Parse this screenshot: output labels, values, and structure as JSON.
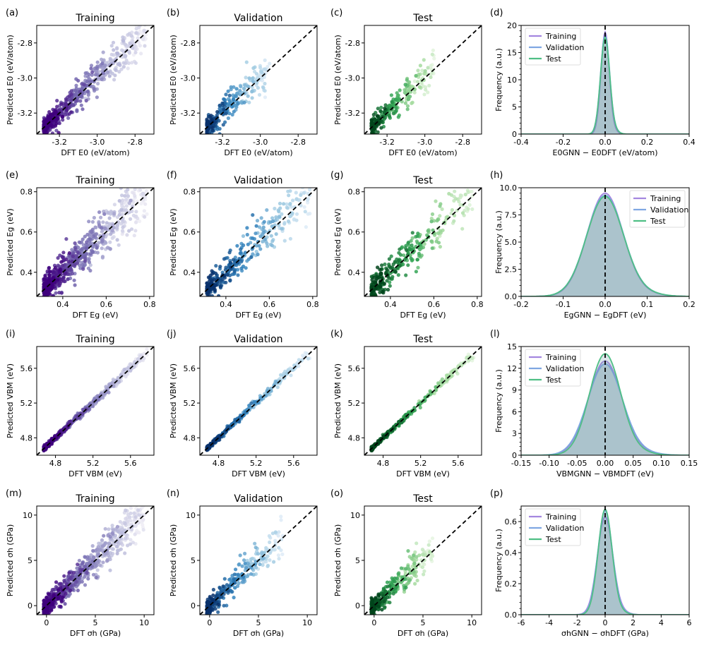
{
  "figure": {
    "row_labels": {
      "E0": {
        "x": "DFT E0 (eV/atom)",
        "y": "Predicted E0 (eV/atom)",
        "x_sym": "E",
        "x_sub": "0",
        "x_unit": "(eV/atom)"
      },
      "Eg": {
        "x": "DFT Eg (eV)",
        "y": "Predicted Eg (eV)"
      },
      "VBM": {
        "x": "DFT VBM (eV)",
        "y": "Predicted VBM (eV)"
      },
      "sigma": {
        "x": "DFT σh (GPa)",
        "y": "Predicted σh (GPa)"
      }
    }
  },
  "chart_data": [
    {
      "panel": "(a)",
      "type": "scatter",
      "title": "Training",
      "colormap": "purple",
      "xlabel": "DFT E0 (eV/atom)",
      "ylabel": "Predicted E0 (eV/atom)",
      "xlim": [
        -3.32,
        -2.7
      ],
      "ylim": [
        -3.32,
        -2.7
      ],
      "xticks": [
        "-3.2",
        "-3.0",
        "-2.8"
      ],
      "xtick_values": [
        -3.2,
        -3.0,
        -2.8
      ],
      "yticks": [
        "-3.2",
        "-3.0",
        "-2.8"
      ],
      "ytick_values": [
        -3.2,
        -3.0,
        -2.8
      ],
      "diagonal": true,
      "n_points": 600,
      "spread": 0.04
    },
    {
      "panel": "(b)",
      "type": "scatter",
      "title": "Validation",
      "colormap": "blue",
      "xlabel": "DFT E0 (eV/atom)",
      "ylabel": "Predicted E0 (eV/atom)",
      "xlim": [
        -3.32,
        -2.7
      ],
      "ylim": [
        -3.32,
        -2.7
      ],
      "xticks": [
        "-3.2",
        "-3.0",
        "-2.8"
      ],
      "xtick_values": [
        -3.2,
        -3.0,
        -2.8
      ],
      "yticks": [
        "-3.2",
        "-3.0",
        "-2.8"
      ],
      "ytick_values": [
        -3.2,
        -3.0,
        -2.8
      ],
      "diagonal": true,
      "n_points": 260,
      "spread": 0.045,
      "data_max": -2.95
    },
    {
      "panel": "(c)",
      "type": "scatter",
      "title": "Test",
      "colormap": "green",
      "xlabel": "DFT E0 (eV/atom)",
      "ylabel": "Predicted E0 (eV/atom)",
      "xlim": [
        -3.32,
        -2.7
      ],
      "ylim": [
        -3.32,
        -2.7
      ],
      "xticks": [
        "-3.2",
        "-3.0",
        "-2.8"
      ],
      "xtick_values": [
        -3.2,
        -3.0,
        -2.8
      ],
      "yticks": [
        "-3.2",
        "-3.0",
        "-2.8"
      ],
      "ytick_values": [
        -3.2,
        -3.0,
        -2.8
      ],
      "diagonal": true,
      "n_points": 240,
      "spread": 0.04,
      "data_max": -2.95
    },
    {
      "panel": "(d)",
      "type": "line",
      "title": "",
      "xlabel": "E0GNN − E0DFT (eV/atom)",
      "ylabel": "Frequency (a.u.)",
      "xlim": [
        -0.4,
        0.4
      ],
      "ylim": [
        0,
        20
      ],
      "xticks": [
        "-0.4",
        "-0.2",
        "0.0",
        "0.2",
        "0.4"
      ],
      "xtick_values": [
        -0.4,
        -0.2,
        0.0,
        0.2,
        0.4
      ],
      "yticks": [
        "0",
        "5",
        "10",
        "15",
        "20"
      ],
      "ytick_values": [
        0,
        5,
        10,
        15,
        20
      ],
      "legend": [
        "Training",
        "Validation",
        "Test"
      ],
      "legend_loc": "top-left",
      "series": [
        {
          "name": "Training",
          "peak": 18.8,
          "width": 0.02
        },
        {
          "name": "Validation",
          "peak": 18.2,
          "width": 0.022
        },
        {
          "name": "Test",
          "peak": 17.8,
          "width": 0.022
        }
      ]
    },
    {
      "panel": "(e)",
      "type": "scatter",
      "title": "Training",
      "colormap": "purple",
      "xlabel": "DFT Eg (eV)",
      "ylabel": "Predicted Eg (eV)",
      "xlim": [
        0.28,
        0.82
      ],
      "ylim": [
        0.28,
        0.82
      ],
      "xticks": [
        "0.4",
        "0.6",
        "0.8"
      ],
      "xtick_values": [
        0.4,
        0.6,
        0.8
      ],
      "yticks": [
        "0.4",
        "0.6",
        "0.8"
      ],
      "ytick_values": [
        0.4,
        0.6,
        0.8
      ],
      "diagonal": true,
      "n_points": 700,
      "spread": 0.05
    },
    {
      "panel": "(f)",
      "type": "scatter",
      "title": "Validation",
      "colormap": "blue",
      "xlabel": "DFT Eg (eV)",
      "ylabel": "Predicted Eg (eV)",
      "xlim": [
        0.28,
        0.82
      ],
      "ylim": [
        0.28,
        0.82
      ],
      "xticks": [
        "0.4",
        "0.6",
        "0.8"
      ],
      "xtick_values": [
        0.4,
        0.6,
        0.8
      ],
      "yticks": [
        "0.4",
        "0.6",
        "0.8"
      ],
      "ytick_values": [
        0.4,
        0.6,
        0.8
      ],
      "diagonal": true,
      "n_points": 320,
      "spread": 0.045
    },
    {
      "panel": "(g)",
      "type": "scatter",
      "title": "Test",
      "colormap": "green",
      "xlabel": "DFT Eg (eV)",
      "ylabel": "Predicted Eg (eV)",
      "xlim": [
        0.28,
        0.82
      ],
      "ylim": [
        0.28,
        0.82
      ],
      "xticks": [
        "0.4",
        "0.6",
        "0.8"
      ],
      "xtick_values": [
        0.4,
        0.6,
        0.8
      ],
      "yticks": [
        "0.4",
        "0.6",
        "0.8"
      ],
      "ytick_values": [
        0.4,
        0.6,
        0.8
      ],
      "diagonal": true,
      "n_points": 320,
      "spread": 0.05
    },
    {
      "panel": "(h)",
      "type": "line",
      "title": "",
      "xlabel": "EgGNN − EgDFT (eV)",
      "ylabel": "Frequency (a.u.)",
      "xlim": [
        -0.2,
        0.2
      ],
      "ylim": [
        0,
        10
      ],
      "xticks": [
        "-0.2",
        "-0.1",
        "0.0",
        "0.1",
        "0.2"
      ],
      "xtick_values": [
        -0.2,
        -0.1,
        0.0,
        0.1,
        0.2
      ],
      "yticks": [
        "0.0",
        "2.5",
        "5.0",
        "7.5",
        "10.0"
      ],
      "ytick_values": [
        0,
        2.5,
        5,
        7.5,
        10
      ],
      "legend": [
        "Training",
        "Validation",
        "Test"
      ],
      "legend_loc": "top-right",
      "series": [
        {
          "name": "Training",
          "peak": 9.5,
          "width": 0.043
        },
        {
          "name": "Validation",
          "peak": 9.3,
          "width": 0.044
        },
        {
          "name": "Test",
          "peak": 9.2,
          "width": 0.044
        }
      ]
    },
    {
      "panel": "(i)",
      "type": "scatter",
      "title": "Training",
      "colormap": "purple",
      "xlabel": "DFT VBM (eV)",
      "ylabel": "Predicted VBM (eV)",
      "xlim": [
        4.6,
        5.85
      ],
      "ylim": [
        4.6,
        5.85
      ],
      "xticks": [
        "4.8",
        "5.2",
        "5.6"
      ],
      "xtick_values": [
        4.8,
        5.2,
        5.6
      ],
      "yticks": [
        "4.8",
        "5.2",
        "5.6"
      ],
      "ytick_values": [
        4.8,
        5.2,
        5.6
      ],
      "diagonal": true,
      "n_points": 600,
      "spread": 0.02
    },
    {
      "panel": "(j)",
      "type": "scatter",
      "title": "Validation",
      "colormap": "blue",
      "xlabel": "DFT VBM (eV)",
      "ylabel": "Predicted VBM (eV)",
      "xlim": [
        4.6,
        5.85
      ],
      "ylim": [
        4.6,
        5.85
      ],
      "xticks": [
        "4.8",
        "5.2",
        "5.6"
      ],
      "xtick_values": [
        4.8,
        5.2,
        5.6
      ],
      "yticks": [
        "4.8",
        "5.2",
        "5.6"
      ],
      "ytick_values": [
        4.8,
        5.2,
        5.6
      ],
      "diagonal": true,
      "n_points": 300,
      "spread": 0.02
    },
    {
      "panel": "(k)",
      "type": "scatter",
      "title": "Test",
      "colormap": "green",
      "xlabel": "DFT VBM (eV)",
      "ylabel": "Predicted VBM (eV)",
      "xlim": [
        4.6,
        5.85
      ],
      "ylim": [
        4.6,
        5.85
      ],
      "xticks": [
        "4.8",
        "5.2",
        "5.6"
      ],
      "xtick_values": [
        4.8,
        5.2,
        5.6
      ],
      "yticks": [
        "4.8",
        "5.2",
        "5.6"
      ],
      "ytick_values": [
        4.8,
        5.2,
        5.6
      ],
      "diagonal": true,
      "n_points": 300,
      "spread": 0.018
    },
    {
      "panel": "(l)",
      "type": "line",
      "title": "",
      "xlabel": "VBMGNN − VBMDFT (eV)",
      "ylabel": "Frequency (a.u.)",
      "xlim": [
        -0.15,
        0.15
      ],
      "ylim": [
        0,
        15
      ],
      "xticks": [
        "-0.15",
        "-0.10",
        "-0.05",
        "0.00",
        "0.05",
        "0.10",
        "0.15"
      ],
      "xtick_values": [
        -0.15,
        -0.1,
        -0.05,
        0,
        0.05,
        0.1,
        0.15
      ],
      "yticks": [
        "0",
        "3",
        "6",
        "9",
        "12",
        "15"
      ],
      "ytick_values": [
        0,
        3,
        6,
        9,
        12,
        15
      ],
      "legend": [
        "Training",
        "Validation",
        "Test"
      ],
      "legend_loc": "top-left",
      "series": [
        {
          "name": "Training",
          "peak": 13.0,
          "width": 0.03
        },
        {
          "name": "Validation",
          "peak": 12.6,
          "width": 0.031
        },
        {
          "name": "Test",
          "peak": 14.0,
          "width": 0.028
        }
      ]
    },
    {
      "panel": "(m)",
      "type": "scatter",
      "title": "Training",
      "colormap": "purple",
      "xlabel": "DFT σh (GPa)",
      "ylabel": "Predicted σh (GPa)",
      "xlim": [
        -1,
        11
      ],
      "ylim": [
        -1,
        11
      ],
      "xticks": [
        "0",
        "5",
        "10"
      ],
      "xtick_values": [
        0,
        5,
        10
      ],
      "yticks": [
        "0",
        "5",
        "10"
      ],
      "ytick_values": [
        0,
        5,
        10
      ],
      "diagonal": true,
      "n_points": 700,
      "spread": 0.8,
      "data_max": 10
    },
    {
      "panel": "(n)",
      "type": "scatter",
      "title": "Validation",
      "colormap": "blue",
      "xlabel": "DFT σh (GPa)",
      "ylabel": "Predicted σh (GPa)",
      "xlim": [
        -1,
        11
      ],
      "ylim": [
        -1,
        11
      ],
      "xticks": [
        "0",
        "5",
        "10"
      ],
      "xtick_values": [
        0,
        5,
        10
      ],
      "yticks": [
        "0",
        "5",
        "10"
      ],
      "ytick_values": [
        0,
        5,
        10
      ],
      "diagonal": true,
      "n_points": 300,
      "spread": 0.8,
      "data_max": 7.5
    },
    {
      "panel": "(o)",
      "type": "scatter",
      "title": "Test",
      "colormap": "green",
      "xlabel": "DFT σh (GPa)",
      "ylabel": "Predicted σh (GPa)",
      "xlim": [
        -1,
        11
      ],
      "ylim": [
        -1,
        11
      ],
      "xticks": [
        "0",
        "5",
        "10"
      ],
      "xtick_values": [
        0,
        5,
        10
      ],
      "yticks": [
        "0",
        "5",
        "10"
      ],
      "ytick_values": [
        0,
        5,
        10
      ],
      "diagonal": true,
      "n_points": 300,
      "spread": 0.8,
      "data_max": 6
    },
    {
      "panel": "(p)",
      "type": "line",
      "title": "",
      "xlabel": "σhGNN − σhDFT (GPa)",
      "ylabel": "Frequency (a.u.)",
      "xlim": [
        -6,
        6
      ],
      "ylim": [
        0,
        0.7
      ],
      "xticks": [
        "-6",
        "-4",
        "-2",
        "0",
        "2",
        "4",
        "6"
      ],
      "xtick_values": [
        -6,
        -4,
        -2,
        0,
        2,
        4,
        6
      ],
      "yticks": [
        "0.0",
        "0.2",
        "0.4",
        "0.6"
      ],
      "ytick_values": [
        0,
        0.2,
        0.4,
        0.6
      ],
      "legend": [
        "Training",
        "Validation",
        "Test"
      ],
      "legend_loc": "top-left",
      "series": [
        {
          "name": "Training",
          "peak": 0.63,
          "width": 0.55
        },
        {
          "name": "Validation",
          "peak": 0.67,
          "width": 0.52
        },
        {
          "name": "Test",
          "peak": 0.68,
          "width": 0.5
        }
      ]
    }
  ],
  "colors": {
    "training": "#a487e0",
    "validation": "#7fa7e2",
    "test": "#4fbf85",
    "fill": "#5f8f9e",
    "diagonal": "#000000"
  }
}
